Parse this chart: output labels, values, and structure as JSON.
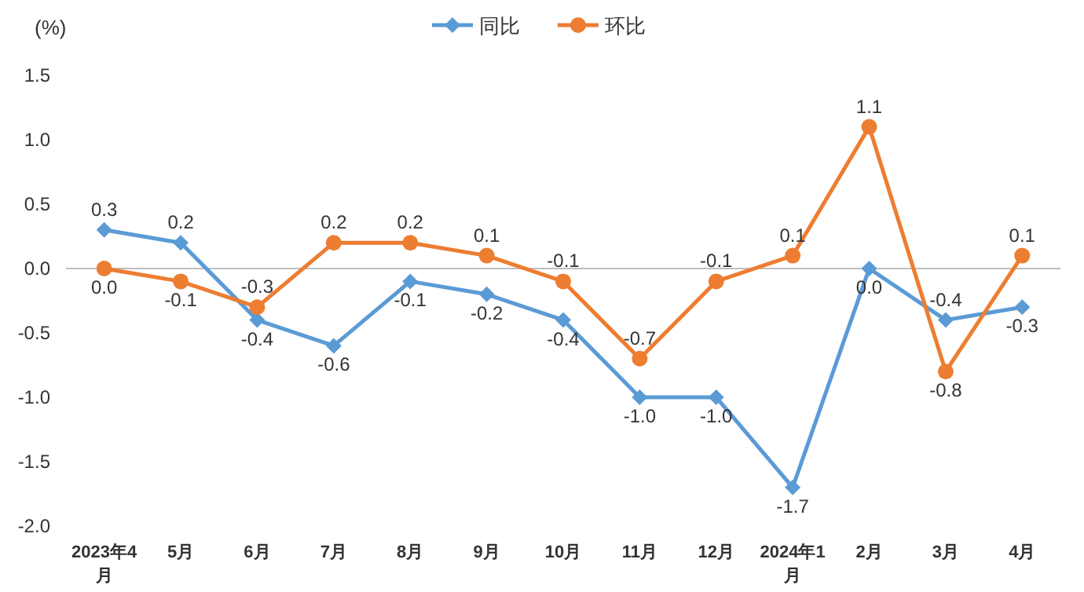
{
  "chart_data": {
    "type": "line",
    "ylabel": "(%)",
    "categories": [
      "2023年4月",
      "5月",
      "6月",
      "7月",
      "8月",
      "9月",
      "10月",
      "11月",
      "12月",
      "2024年1月",
      "2月",
      "3月",
      "4月"
    ],
    "series": [
      {
        "name": "同比",
        "color": "#5b9bd5",
        "marker": "diamond",
        "values": [
          0.3,
          0.2,
          -0.4,
          -0.6,
          -0.1,
          -0.2,
          -0.4,
          -1.0,
          -1.0,
          -1.7,
          0.0,
          -0.4,
          -0.3
        ],
        "value_labels": [
          "0.3",
          "0.2",
          "-0.4",
          "-0.6",
          "-0.1",
          "-0.2",
          "-0.4",
          "-1.0",
          "-1.0",
          "-1.7",
          "0.0",
          "-0.4",
          "-0.3"
        ]
      },
      {
        "name": "环比",
        "color": "#ed7d31",
        "marker": "circle",
        "values": [
          0.0,
          -0.1,
          -0.3,
          0.2,
          0.2,
          0.1,
          -0.1,
          -0.7,
          -0.1,
          0.1,
          1.1,
          -0.8,
          0.1
        ],
        "value_labels": [
          "0.0",
          "-0.1",
          "-0.3",
          "0.2",
          "0.2",
          "0.1",
          "-0.1",
          "-0.7",
          "-0.1",
          "0.1",
          "1.1",
          "-0.8",
          "0.1"
        ]
      }
    ],
    "ylim": [
      -2.0,
      1.5
    ],
    "yticks": [
      {
        "value": -2.0,
        "label": "-2.0"
      },
      {
        "value": -1.5,
        "label": "-1.5"
      },
      {
        "value": -1.0,
        "label": "-1.0"
      },
      {
        "value": -0.5,
        "label": "-0.5"
      },
      {
        "value": 0.0,
        "label": "0.0"
      },
      {
        "value": 0.5,
        "label": "0.5"
      },
      {
        "value": 1.0,
        "label": "1.0"
      },
      {
        "value": 1.5,
        "label": "1.5"
      }
    ],
    "ref_lines": [
      {
        "axis": "y",
        "value": 0,
        "color": "#bfbfbf"
      }
    ],
    "legend": "top"
  }
}
